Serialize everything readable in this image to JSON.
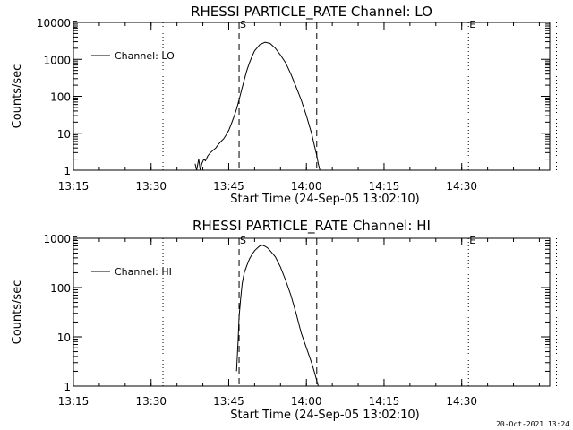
{
  "chart_data": [
    {
      "type": "line",
      "title": "RHESSI PARTICLE_RATE Channel: LO",
      "xlabel": "Start Time (24-Sep-05 13:02:10)",
      "ylabel": "Counts/sec",
      "yscale": "log",
      "ylim": [
        1,
        10000
      ],
      "xlim_minutes": [
        13.0,
        105.0
      ],
      "xticks": [
        {
          "m": 13,
          "label": "13:15"
        },
        {
          "m": 28,
          "label": "13:30"
        },
        {
          "m": 43,
          "label": "13:45"
        },
        {
          "m": 58,
          "label": "14:00"
        },
        {
          "m": 73,
          "label": "14:15"
        },
        {
          "m": 88,
          "label": "14:30"
        }
      ],
      "yticks": [
        {
          "v": 1,
          "label": "1"
        },
        {
          "v": 10,
          "label": "10"
        },
        {
          "v": 100,
          "label": "100"
        },
        {
          "v": 1000,
          "label": "1000"
        },
        {
          "v": 10000,
          "label": "10000"
        }
      ],
      "legend": "Channel: LO",
      "markers": {
        "E_left": "E",
        "S": "S",
        "E_right": "E"
      },
      "dotted_lines_minutes": [
        30.3,
        89.3,
        106.3
      ],
      "dashed_lines_minutes": [
        45.0,
        60.0
      ],
      "series": [
        {
          "name": "Channel: LO",
          "x": [
            36.5,
            36.8,
            37.2,
            37.5,
            37.8,
            38.2,
            38.5,
            39.0,
            39.5,
            40.0,
            40.5,
            41.0,
            41.5,
            42.0,
            42.5,
            43.0,
            43.5,
            44.0,
            44.5,
            45.0,
            45.5,
            46.0,
            46.5,
            47.0,
            47.5,
            48.0,
            49.0,
            50.0,
            51.0,
            52.0,
            53.0,
            54.0,
            55.0,
            56.0,
            57.0,
            58.0,
            59.0,
            59.5,
            60.0,
            60.3,
            60.6
          ],
          "y": [
            1.5,
            1,
            2,
            1,
            1.5,
            2,
            1.8,
            2.5,
            3,
            3.5,
            4,
            5,
            6,
            7,
            9,
            12,
            18,
            28,
            45,
            80,
            150,
            280,
            500,
            800,
            1200,
            1700,
            2500,
            2900,
            2700,
            2000,
            1300,
            800,
            400,
            180,
            80,
            30,
            10,
            5,
            2.5,
            1.5,
            1
          ]
        }
      ]
    },
    {
      "type": "line",
      "title": "RHESSI PARTICLE_RATE Channel: HI",
      "xlabel": "Start Time (24-Sep-05 13:02:10)",
      "ylabel": "Counts/sec",
      "yscale": "log",
      "ylim": [
        1,
        1000
      ],
      "xlim_minutes": [
        13.0,
        105.0
      ],
      "xticks": [
        {
          "m": 13,
          "label": "13:15"
        },
        {
          "m": 28,
          "label": "13:30"
        },
        {
          "m": 43,
          "label": "13:45"
        },
        {
          "m": 58,
          "label": "14:00"
        },
        {
          "m": 73,
          "label": "14:15"
        },
        {
          "m": 88,
          "label": "14:30"
        }
      ],
      "yticks": [
        {
          "v": 1,
          "label": "1"
        },
        {
          "v": 10,
          "label": "10"
        },
        {
          "v": 100,
          "label": "100"
        },
        {
          "v": 1000,
          "label": "1000"
        }
      ],
      "legend": "Channel: HI",
      "markers": {
        "E_left": "E",
        "S": "S",
        "E_right": "E"
      },
      "dotted_lines_minutes": [
        30.3,
        89.3,
        106.3
      ],
      "dashed_lines_minutes": [
        45.0,
        60.0
      ],
      "series": [
        {
          "name": "Channel: HI",
          "x": [
            44.5,
            44.8,
            45.0,
            45.3,
            45.6,
            46.0,
            46.5,
            47.0,
            47.5,
            48.0,
            48.5,
            49.0,
            49.5,
            50.0,
            50.5,
            51.0,
            52.0,
            53.0,
            54.0,
            55.0,
            56.0,
            57.0,
            58.0,
            59.0,
            59.5,
            60.0,
            60.3
          ],
          "y": [
            2,
            8,
            25,
            60,
            120,
            200,
            280,
            380,
            470,
            560,
            630,
            700,
            720,
            690,
            640,
            560,
            420,
            260,
            140,
            70,
            30,
            12,
            6,
            3,
            2,
            1.3,
            1
          ]
        }
      ]
    }
  ],
  "timestamp": "20-Oct-2021 13:24"
}
